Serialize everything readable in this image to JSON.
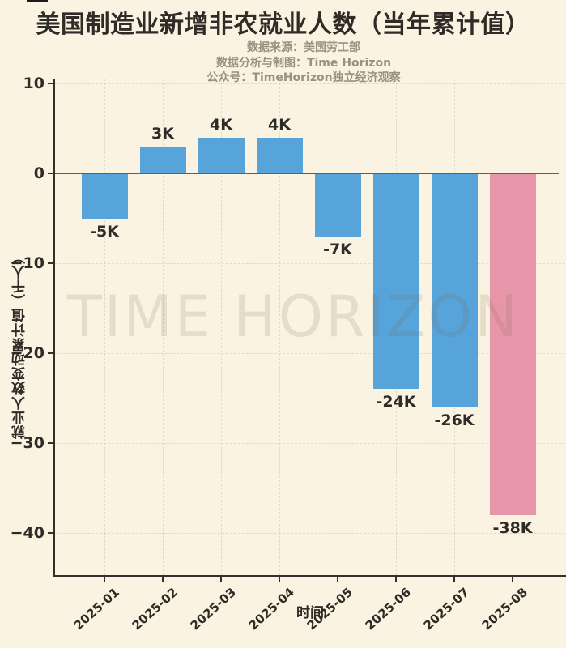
{
  "page": {
    "background": "#FAF3E2"
  },
  "title": "美国制造业新增非农就业人数（当年累计值）",
  "subtitle_lines": [
    "数据来源：美国劳工部",
    "数据分析与制图：Time Horizon",
    "公众号：TimeHorizon独立经济观察"
  ],
  "watermark": "TIME HORIZON",
  "colors": {
    "background": "#FAF3E2",
    "title_text": "#2F2B26",
    "subtitle_text": "#98917E",
    "axis_text": "#2F2B26",
    "bar_blue": "#57A4DB",
    "bar_pink": "#E795A8",
    "zero_line": "#66604F"
  },
  "chart_data": {
    "type": "bar",
    "title": "美国制造业新增非农就业人数（当年累计值）",
    "categories": [
      "2025-01",
      "2025-02",
      "2025-03",
      "2025-04",
      "2025-05",
      "2025-06",
      "2025-07",
      "2025-08"
    ],
    "values": [
      -5,
      3,
      4,
      4,
      -7,
      -24,
      -26,
      -38
    ],
    "bar_labels": [
      "-5K",
      "3K",
      "4K",
      "4K",
      "-7K",
      "-24K",
      "-26K",
      "-38K"
    ],
    "unit": "千人",
    "xlabel": "时间",
    "ylabel": "就业人数变动累计值（千人）",
    "yticks": [
      10,
      0,
      -10,
      -20,
      -30,
      -40
    ],
    "ylim": [
      -45,
      10.5
    ],
    "grid": true,
    "legend": false,
    "bar_color": "#57A4DB",
    "highlight_color": "#E795A8",
    "highlight_index": 7,
    "zero_line": true
  }
}
